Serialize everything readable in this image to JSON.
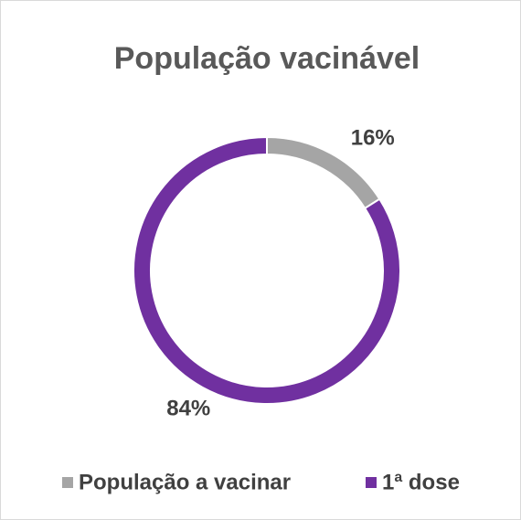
{
  "chart_data": {
    "type": "donut",
    "title": "População vacinável",
    "categories": [
      "População a vacinar",
      "1ª dose"
    ],
    "values": [
      16,
      84
    ],
    "value_labels": [
      "16%",
      "84%"
    ],
    "colors": [
      "#a5a5a5",
      "#7030a0"
    ],
    "legend": "bottom"
  }
}
